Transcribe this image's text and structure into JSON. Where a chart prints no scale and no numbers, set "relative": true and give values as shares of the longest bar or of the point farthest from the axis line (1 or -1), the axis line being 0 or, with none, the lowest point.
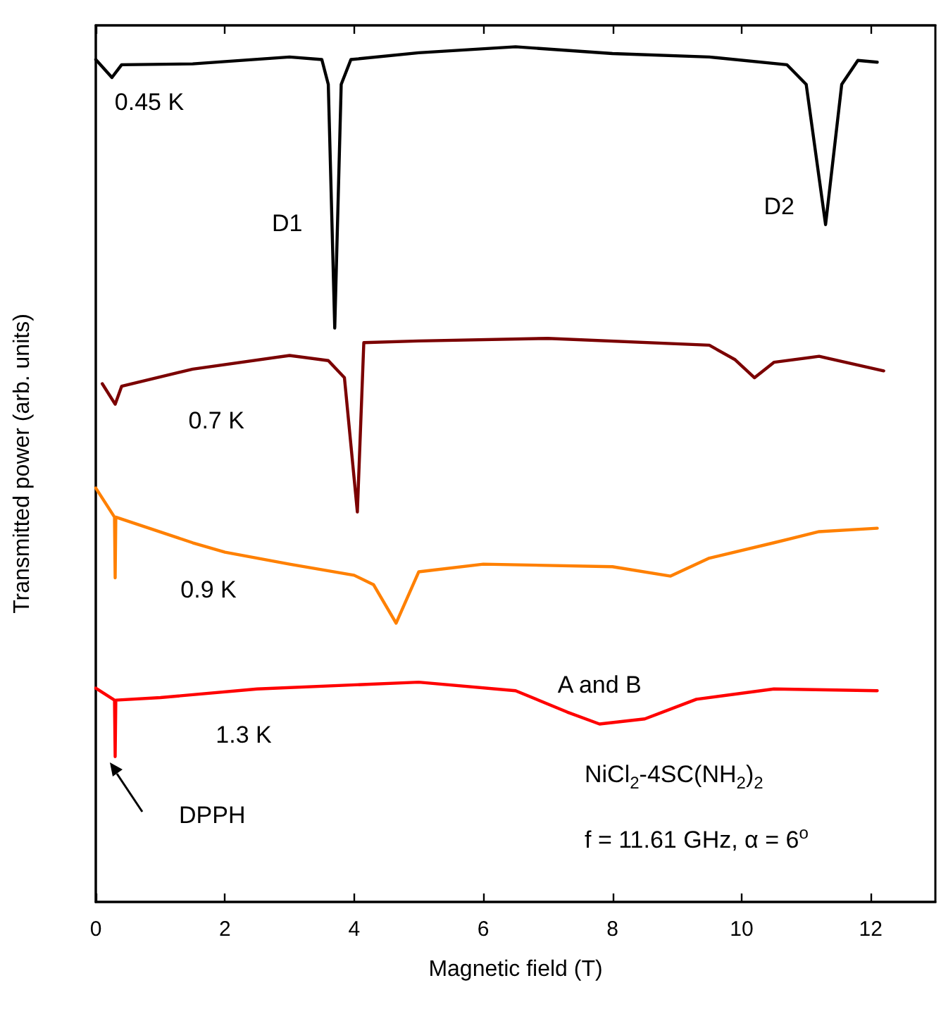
{
  "chart_data": {
    "type": "line",
    "relative": true,
    "xlabel": "Magnetic field (T)",
    "ylabel": "Transmitted power (arb. units)",
    "xlim": [
      0,
      13
    ],
    "xticks": [
      0,
      2,
      4,
      6,
      8,
      10,
      12
    ],
    "grid": false,
    "legend": false,
    "marker": "none",
    "line_style": "solid",
    "series": [
      {
        "name": "0.45 K",
        "color": "#000000",
        "x": [
          0,
          0.25,
          0.4,
          1.5,
          3.0,
          3.5,
          3.6,
          3.7,
          3.8,
          3.95,
          5,
          6.5,
          8,
          9.5,
          10.7,
          11.0,
          11.3,
          11.55,
          11.8,
          12.1
        ],
        "values": [
          0.985,
          0.964,
          0.979,
          0.98,
          0.988,
          0.985,
          0.956,
          0.671,
          0.956,
          0.985,
          0.993,
          1.0,
          0.992,
          0.988,
          0.979,
          0.956,
          0.792,
          0.956,
          0.984,
          0.982
        ]
      },
      {
        "name": "0.7 K",
        "color": "#7b0000",
        "x": [
          0.1,
          0.3,
          0.4,
          1.5,
          3.0,
          3.6,
          3.85,
          4.05,
          4.15,
          5,
          7,
          9.5,
          9.9,
          10.2,
          10.5,
          11.2,
          12.2
        ],
        "values": [
          0.606,
          0.582,
          0.603,
          0.623,
          0.639,
          0.633,
          0.613,
          0.456,
          0.654,
          0.656,
          0.659,
          0.651,
          0.634,
          0.613,
          0.631,
          0.638,
          0.621
        ]
      },
      {
        "name": "0.9 K",
        "color": "#ff8000",
        "x": [
          0,
          0.29,
          0.3,
          0.31,
          1.5,
          2,
          3,
          4,
          4.3,
          4.65,
          5.0,
          6,
          8,
          8.9,
          9.5,
          10.5,
          11.2,
          12.1
        ],
        "values": [
          0.484,
          0.45,
          0.379,
          0.45,
          0.42,
          0.409,
          0.395,
          0.382,
          0.371,
          0.326,
          0.386,
          0.395,
          0.392,
          0.381,
          0.402,
          0.42,
          0.433,
          0.437
        ]
      },
      {
        "name": "1.3 K",
        "color": "#ff0000",
        "x": [
          0,
          0.29,
          0.3,
          0.31,
          1,
          2.5,
          5,
          6.5,
          7.3,
          7.8,
          8.5,
          9.3,
          10.5,
          12.1
        ],
        "values": [
          0.25,
          0.236,
          0.17,
          0.236,
          0.239,
          0.249,
          0.257,
          0.247,
          0.222,
          0.208,
          0.214,
          0.237,
          0.249,
          0.247
        ]
      }
    ],
    "annotations": [
      "D1",
      {
        "text": "D2",
        "x": 11.3,
        "y": 0.792
      },
      {
        "text": "A and B",
        "x": 7.8,
        "y": 0.208
      },
      "DPPH",
      "NiCl$_{2}$-4SC(NH$_{2}$)$_{2}$",
      "f = 11.61 GHz, α = 6$^{o}$"
    ]
  }
}
